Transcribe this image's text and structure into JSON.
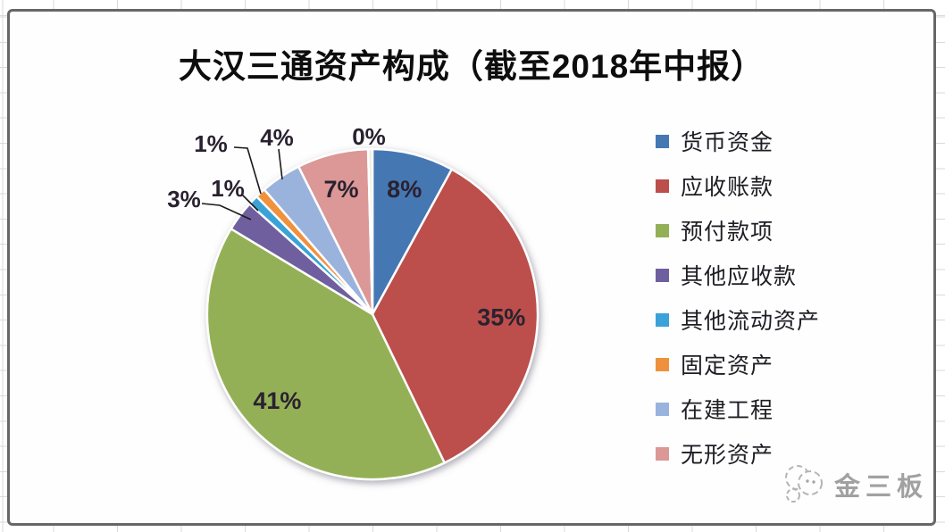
{
  "chart_data": {
    "type": "pie",
    "title": "大汉三通资产构成（截至2018年中报）",
    "legend_position": "right",
    "data_labels": "percent",
    "series": [
      {
        "name": "货币资金",
        "value": 8,
        "label": "8%",
        "color": "#4477B3"
      },
      {
        "name": "应收账款",
        "value": 35,
        "label": "35%",
        "color": "#BC4F4B"
      },
      {
        "name": "预付款项",
        "value": 41,
        "label": "41%",
        "color": "#94B056"
      },
      {
        "name": "其他应收款",
        "value": 3,
        "label": "3%",
        "color": "#6F5F9E"
      },
      {
        "name": "其他流动资产",
        "value": 1,
        "label": "1%",
        "color": "#3AA2D8"
      },
      {
        "name": "固定资产",
        "value": 1,
        "label": "1%",
        "color": "#EF913C"
      },
      {
        "name": "在建工程",
        "value": 4,
        "label": "4%",
        "color": "#9AB3DD"
      },
      {
        "name": "无形资产",
        "value": 7,
        "label": "7%",
        "color": "#DB9896"
      },
      {
        "name": "",
        "value": 0,
        "label": "0%",
        "color": "#EFEDDF"
      }
    ]
  },
  "watermark": {
    "text": "金三板"
  }
}
